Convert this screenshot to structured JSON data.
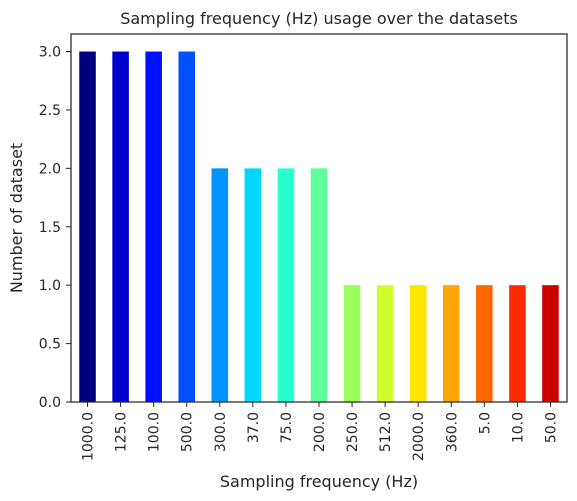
{
  "chart_data": {
    "type": "bar",
    "title": "Sampling frequency (Hz) usage over the datasets",
    "xlabel": "Sampling frequency (Hz)",
    "ylabel": "Number of dataset",
    "categories": [
      "1000.0",
      "125.0",
      "100.0",
      "500.0",
      "300.0",
      "37.0",
      "75.0",
      "200.0",
      "250.0",
      "512.0",
      "2000.0",
      "360.0",
      "5.0",
      "10.0",
      "50.0"
    ],
    "values": [
      3,
      3,
      3,
      3,
      2,
      2,
      2,
      2,
      1,
      1,
      1,
      1,
      1,
      1,
      1
    ],
    "colors": [
      "#00007f",
      "#0000cd",
      "#0010ff",
      "#0050ff",
      "#0094ff",
      "#00d8ff",
      "#29ffce",
      "#5dff9a",
      "#9aff5d",
      "#ceff29",
      "#ffe600",
      "#ffa600",
      "#ff6800",
      "#ff2900",
      "#cd0000"
    ],
    "yticks": [
      "0.0",
      "0.5",
      "1.0",
      "1.5",
      "2.0",
      "2.5",
      "3.0"
    ],
    "ylim": [
      0,
      3.15
    ],
    "grid": false,
    "legend": "none"
  }
}
